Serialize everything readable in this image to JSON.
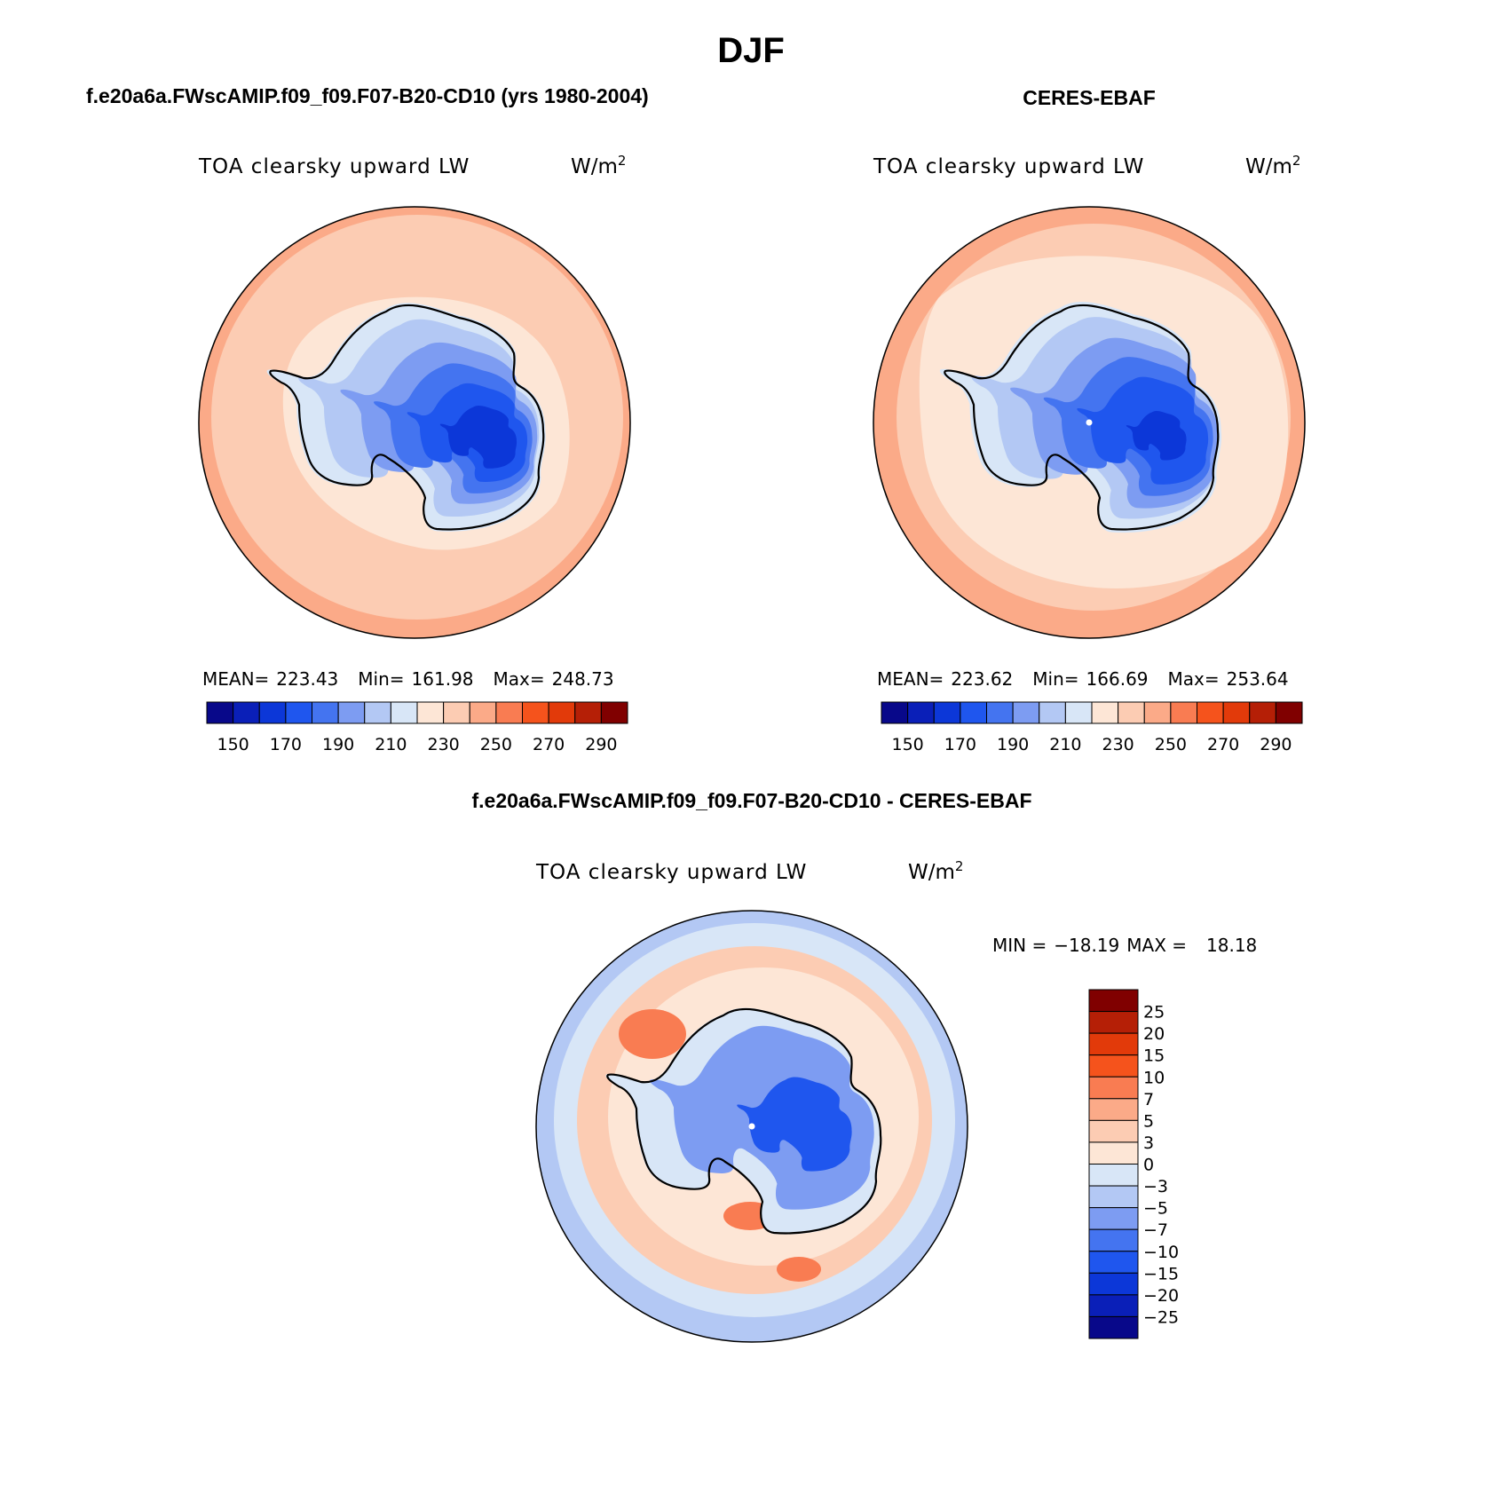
{
  "figure": {
    "title": "DJF"
  },
  "panels": [
    {
      "id": "model",
      "heading": "f.e20a6a.FWscAMIP.f09_f09.F07-B20-CD10 (yrs 1980-2004)",
      "variable": "TOA clearsky upward LW",
      "units": "W/m",
      "units_sup": "2",
      "stats": {
        "mean_label": "MEAN=",
        "mean": "223.43",
        "min_label": "Min=",
        "min": "161.98",
        "max_label": "Max=",
        "max": "248.73"
      },
      "south_pole_dot": false
    },
    {
      "id": "obs",
      "heading": "CERES-EBAF",
      "variable": "TOA clearsky upward LW",
      "units": "W/m",
      "units_sup": "2",
      "stats": {
        "mean_label": "MEAN=",
        "mean": "223.62",
        "min_label": "Min=",
        "min": "166.69",
        "max_label": "Max=",
        "max": "253.64"
      },
      "south_pole_dot": true
    }
  ],
  "abs_colorbar": {
    "colors": [
      "#08088a",
      "#0a1fb8",
      "#0c37d8",
      "#1f56ee",
      "#4474f0",
      "#7d9cf2",
      "#b3c8f4",
      "#d8e6f7",
      "#fde6d6",
      "#fcccb3",
      "#fbaa88",
      "#f97c52",
      "#f5531c",
      "#e23a0a",
      "#b51f06",
      "#800000"
    ],
    "tick_labels": [
      "150",
      "170",
      "190",
      "210",
      "230",
      "250",
      "270",
      "290"
    ]
  },
  "diff_panel": {
    "heading": "f.e20a6a.FWscAMIP.f09_f09.F07-B20-CD10 - CERES-EBAF",
    "variable": "TOA clearsky upward LW",
    "units": "W/m",
    "units_sup": "2",
    "minmax": {
      "min_label": "MIN =",
      "min": "−18.19",
      "max_label": "MAX =",
      "max": "18.18"
    },
    "south_pole_dot": true
  },
  "diff_colorbar": {
    "colors": [
      "#800000",
      "#b51f06",
      "#e23a0a",
      "#f5531c",
      "#f97c52",
      "#fbaa88",
      "#fcccb3",
      "#fde6d6",
      "#d8e6f7",
      "#b3c8f4",
      "#7d9cf2",
      "#4474f0",
      "#1f56ee",
      "#0c37d8",
      "#0a1fb8",
      "#08088a"
    ],
    "tick_labels": [
      "25",
      "20",
      "15",
      "10",
      "7",
      "5",
      "3",
      "0",
      "−3",
      "−5",
      "−7",
      "−10",
      "−15",
      "−20",
      "−25"
    ]
  },
  "map_colors": {
    "ocean_outer": "#fbaa88",
    "ocean_mid": "#fcccb3",
    "ocean_inner": "#fde6d6",
    "ice_edge": "#d8e6f7",
    "land_1": "#b3c8f4",
    "land_2": "#7d9cf2",
    "land_3": "#4474f0",
    "land_4": "#1f56ee",
    "land_5": "#0c37d8",
    "diff_ocean_outer": "#b3c8f4",
    "diff_ocean_mid": "#d8e6f7",
    "diff_ring": "#fcccb3",
    "diff_ring_light": "#fde6d6",
    "diff_hot": "#f97c52",
    "diff_land": "#7d9cf2",
    "diff_land_dark": "#1f56ee"
  }
}
